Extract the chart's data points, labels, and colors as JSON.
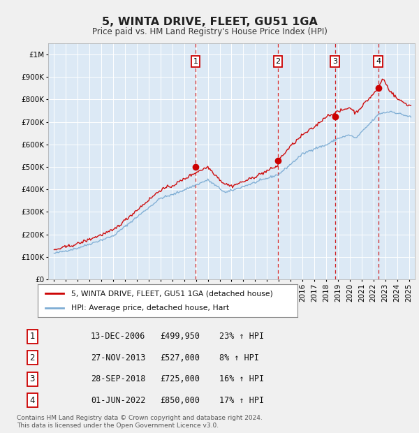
{
  "title": "5, WINTA DRIVE, FLEET, GU51 1GA",
  "subtitle": "Price paid vs. HM Land Registry's House Price Index (HPI)",
  "footer1": "Contains HM Land Registry data © Crown copyright and database right 2024.",
  "footer2": "This data is licensed under the Open Government Licence v3.0.",
  "legend_red": "5, WINTA DRIVE, FLEET, GU51 1GA (detached house)",
  "legend_blue": "HPI: Average price, detached house, Hart",
  "transactions": [
    {
      "num": 1,
      "date": "13-DEC-2006",
      "price": 499950,
      "pct": "23%",
      "year": 2006.96
    },
    {
      "num": 2,
      "date": "27-NOV-2013",
      "price": 527000,
      "pct": "8%",
      "year": 2013.92
    },
    {
      "num": 3,
      "date": "28-SEP-2018",
      "price": 725000,
      "pct": "16%",
      "year": 2018.75
    },
    {
      "num": 4,
      "date": "01-JUN-2022",
      "price": 850000,
      "pct": "17%",
      "year": 2022.42
    }
  ],
  "ylim": [
    0,
    1050000
  ],
  "xlim_start": 1994.5,
  "xlim_end": 2025.5,
  "background_color": "#dce9f5",
  "red_color": "#cc0000",
  "blue_color": "#7eadd4",
  "grid_color": "#ffffff",
  "vline_color": "#cc0000",
  "fig_bg": "#f0f0f0"
}
